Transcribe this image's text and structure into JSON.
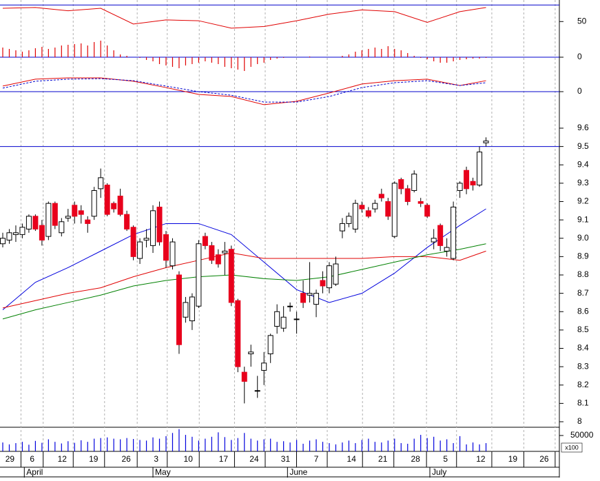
{
  "chart_data": [
    {
      "type": "line",
      "ylim": [
        7,
        76
      ],
      "yticks": [
        50
      ],
      "ref_line": 70,
      "series": [
        {
          "color": "#e00000",
          "x": [
            0,
            5,
            10,
            15,
            20,
            25,
            30,
            35,
            40,
            45,
            50,
            55,
            60,
            65,
            70,
            74
          ],
          "values": [
            66,
            67,
            63,
            66,
            47,
            52,
            51,
            42,
            44,
            51,
            59,
            64,
            62,
            49,
            62,
            67
          ]
        }
      ]
    },
    {
      "type": "bar",
      "ylim": [
        -30,
        30
      ],
      "yticks": [
        0
      ],
      "ref_line": 0,
      "color": "#e00000",
      "values": [
        14,
        12,
        10,
        8,
        10,
        13,
        15,
        12,
        14,
        17,
        18,
        19,
        20,
        17,
        22,
        24,
        17,
        10,
        4,
        2,
        0,
        -1,
        -4,
        -6,
        -10,
        -12,
        -14,
        -16,
        -12,
        -10,
        -8,
        -6,
        -8,
        -10,
        -14,
        -16,
        -18,
        -20,
        -14,
        -10,
        -8,
        -4,
        -2,
        -1,
        0,
        0,
        0,
        1,
        0,
        0,
        0,
        0,
        2,
        4,
        8,
        10,
        12,
        14,
        12,
        16,
        12,
        10,
        6,
        2,
        -1,
        -3,
        -6,
        -8,
        -8,
        -6,
        -4,
        -3,
        -2,
        -2,
        -1
      ]
    },
    {
      "type": "line",
      "ylim": [
        -0.1,
        0.1
      ],
      "yticks": [
        0
      ],
      "ref_line": 0,
      "series": [
        {
          "color": "#e00000",
          "x": [
            0,
            5,
            10,
            15,
            20,
            25,
            30,
            35,
            40,
            45,
            50,
            55,
            60,
            65,
            70,
            74
          ],
          "values": [
            0.03,
            0.067,
            0.074,
            0.074,
            0.056,
            0.022,
            -0.015,
            -0.026,
            -0.07,
            -0.052,
            -0.007,
            0.041,
            0.059,
            0.067,
            0.033,
            0.059
          ]
        },
        {
          "color": "#0000cc",
          "dash": true,
          "x": [
            0,
            5,
            10,
            15,
            20,
            25,
            30,
            35,
            40,
            45,
            50,
            55,
            60,
            65,
            70,
            74
          ],
          "values": [
            0.019,
            0.056,
            0.067,
            0.07,
            0.059,
            0.03,
            0,
            -0.019,
            -0.056,
            -0.056,
            -0.026,
            0.022,
            0.048,
            0.059,
            0.033,
            0.048
          ]
        }
      ]
    },
    {
      "type": "candlestick",
      "ylim": [
        7.97,
        9.66
      ],
      "yticks": [
        8.0,
        8.1,
        8.2,
        8.3,
        8.4,
        8.5,
        8.6,
        8.7,
        8.8,
        8.9,
        {
          "value": 9,
          "label": "9.0"
        },
        9.1,
        9.2,
        9.3,
        9.4,
        9.5,
        9.6
      ],
      "ref_line": 9.5,
      "up_color": "#ffffff",
      "down_color": "#e8001c",
      "open": [
        8.97,
        8.99,
        9.02,
        9.02,
        9.05,
        9.12,
        9.07,
        9.01,
        9.19,
        9.03,
        9.11,
        9.18,
        9.15,
        9.1,
        9.12,
        9.27,
        9.29,
        9.19,
        9.23,
        9.13,
        9.06,
        8.89,
        8.99,
        8.96,
        9.17,
        9.02,
        8.85,
        8.8,
        8.57,
        8.55,
        8.63,
        9.01,
        8.96,
        8.91,
        8.92,
        8.94,
        8.66,
        8.27,
        8.37,
        8.17,
        8.28,
        8.37,
        8.52,
        8.51,
        8.63,
        8.56,
        8.7,
        8.69,
        8.64,
        8.77,
        8.73,
        8.75,
        9.04,
        9.08,
        9.05,
        9.18,
        9.15,
        9.16,
        9.24,
        9.2,
        9.01,
        9.32,
        9.27,
        9.26,
        9.2,
        9.18,
        8.98,
        9.07,
        8.93,
        8.89,
        9.26,
        9.37,
        9.31,
        9.29,
        9.52
      ],
      "high": [
        9.03,
        9.05,
        9.07,
        9.08,
        9.13,
        9.13,
        9.1,
        9.2,
        9.2,
        9.11,
        9.16,
        9.2,
        9.18,
        9.12,
        9.28,
        9.38,
        9.3,
        9.2,
        9.27,
        9.15,
        9.07,
        9.0,
        9.05,
        9.18,
        9.2,
        9.04,
        9.0,
        8.82,
        8.68,
        8.7,
        8.99,
        9.03,
        8.98,
        8.94,
        8.98,
        8.96,
        8.67,
        8.3,
        8.42,
        8.25,
        8.38,
        8.48,
        8.64,
        8.63,
        8.65,
        8.6,
        8.77,
        8.87,
        8.72,
        8.82,
        8.87,
        8.9,
        9.11,
        9.14,
        9.21,
        9.2,
        9.17,
        9.21,
        9.27,
        9.22,
        9.31,
        9.33,
        9.29,
        9.37,
        9.22,
        9.19,
        9.05,
        9.08,
        9.0,
        9.2,
        9.31,
        9.39,
        9.33,
        9.5,
        9.55
      ],
      "low": [
        8.95,
        8.97,
        8.98,
        9.0,
        9.03,
        9.04,
        8.96,
        8.99,
        9.05,
        9.01,
        9.09,
        9.08,
        9.08,
        9.03,
        9.1,
        9.22,
        9.12,
        9.14,
        9.12,
        9.04,
        8.88,
        8.86,
        8.95,
        8.92,
        8.96,
        8.84,
        8.83,
        8.37,
        8.54,
        8.5,
        8.62,
        8.94,
        8.86,
        8.84,
        8.8,
        8.63,
        8.27,
        8.1,
        8.3,
        8.13,
        8.2,
        8.32,
        8.48,
        8.49,
        8.6,
        8.48,
        8.62,
        8.65,
        8.57,
        8.7,
        8.7,
        8.74,
        9.0,
        9.06,
        9.03,
        9.14,
        9.11,
        9.14,
        9.2,
        9.1,
        9.0,
        9.24,
        9.18,
        9.25,
        9.17,
        9.11,
        8.94,
        8.93,
        8.9,
        8.88,
        9.22,
        9.24,
        9.26,
        9.28,
        9.5
      ],
      "close": [
        9.0,
        9.03,
        9.03,
        9.06,
        9.12,
        9.05,
        8.99,
        9.19,
        9.07,
        9.09,
        9.12,
        9.12,
        9.13,
        9.08,
        9.26,
        9.33,
        9.13,
        9.16,
        9.13,
        9.05,
        8.9,
        8.98,
        9.0,
        9.15,
        8.98,
        8.88,
        8.98,
        8.42,
        8.65,
        8.68,
        8.97,
        8.96,
        8.88,
        8.86,
        8.93,
        8.65,
        8.3,
        8.22,
        8.38,
        8.17,
        8.32,
        8.47,
        8.6,
        8.57,
        8.63,
        8.56,
        8.65,
        8.7,
        8.7,
        8.74,
        8.85,
        8.86,
        9.08,
        9.12,
        9.19,
        9.16,
        9.12,
        9.19,
        9.22,
        9.12,
        9.3,
        9.27,
        9.2,
        9.35,
        9.19,
        9.12,
        9.0,
        8.96,
        8.95,
        9.17,
        9.3,
        9.27,
        9.29,
        9.47,
        9.53
      ],
      "series": [
        {
          "color": "#0000dd",
          "x": [
            0,
            5,
            10,
            15,
            20,
            25,
            30,
            35,
            40,
            45,
            50,
            55,
            60,
            65,
            70,
            74
          ],
          "values": [
            8.61,
            8.76,
            8.84,
            8.93,
            9.02,
            9.08,
            9.08,
            9.02,
            8.87,
            8.72,
            8.65,
            8.7,
            8.81,
            8.95,
            9.07,
            9.16
          ]
        },
        {
          "color": "#e00000",
          "x": [
            0,
            5,
            10,
            15,
            20,
            25,
            30,
            35,
            40,
            45,
            50,
            55,
            60,
            65,
            70,
            74
          ],
          "values": [
            8.62,
            8.66,
            8.7,
            8.73,
            8.79,
            8.84,
            8.88,
            8.92,
            8.89,
            8.89,
            8.89,
            8.89,
            8.9,
            8.9,
            8.88,
            8.93
          ]
        },
        {
          "color": "#008000",
          "x": [
            0,
            5,
            10,
            15,
            20,
            25,
            30,
            35,
            40,
            45,
            50,
            55,
            60,
            65,
            70,
            74
          ],
          "values": [
            8.56,
            8.61,
            8.65,
            8.69,
            8.74,
            8.77,
            8.79,
            8.8,
            8.78,
            8.77,
            8.79,
            8.83,
            8.87,
            8.91,
            8.94,
            8.97
          ]
        }
      ]
    },
    {
      "type": "bar",
      "ylim": [
        0,
        76000
      ],
      "yticks": [
        50000
      ],
      "unit_label": "x100",
      "color": "#0000dd",
      "values": [
        28000,
        22000,
        26000,
        30000,
        21000,
        33000,
        27000,
        38000,
        30000,
        25000,
        32000,
        27000,
        35000,
        30000,
        40000,
        42000,
        44000,
        40000,
        38000,
        42000,
        39000,
        36000,
        34000,
        44000,
        40000,
        48000,
        58000,
        70000,
        52000,
        46000,
        34000,
        40000,
        46000,
        60000,
        45000,
        36000,
        42000,
        58000,
        40000,
        34000,
        38000,
        40000,
        30000,
        32000,
        28000,
        36000,
        24000,
        34000,
        38000,
        30000,
        26000,
        22000,
        28000,
        34000,
        26000,
        36000,
        40000,
        30000,
        28000,
        34000,
        40000,
        26000,
        24000,
        40000,
        52000,
        42000,
        46000,
        34000,
        38000,
        26000,
        48000,
        22000,
        28000,
        22000,
        26000
      ],
      "xticks": [
        {
          "value": 1.1,
          "label": "29"
        },
        {
          "value": 4.5,
          "label": "6"
        },
        {
          "value": 9.1,
          "label": "12"
        },
        {
          "value": 13.9,
          "label": "19"
        },
        {
          "value": 18.9,
          "label": "26"
        },
        {
          "value": 23.5,
          "label": "3"
        },
        {
          "value": 28.4,
          "label": "10"
        },
        {
          "value": 33.8,
          "label": "17"
        },
        {
          "value": 38.5,
          "label": "24"
        },
        {
          "value": 43.3,
          "label": "31"
        },
        {
          "value": 48,
          "label": "7"
        },
        {
          "value": 53.4,
          "label": "14"
        },
        {
          "value": 58.2,
          "label": "21"
        },
        {
          "value": 63.2,
          "label": "28"
        },
        {
          "value": 67.8,
          "label": "5"
        },
        {
          "value": 73.2,
          "label": "12"
        },
        {
          "value": 78.1,
          "label": "19"
        },
        {
          "value": 82.9,
          "label": "26"
        }
      ],
      "months": [
        {
          "value": 3.3,
          "label": "April"
        },
        {
          "value": 23,
          "label": "May"
        },
        {
          "value": 43.6,
          "label": "June"
        },
        {
          "value": 65.4,
          "label": "July"
        }
      ]
    }
  ]
}
